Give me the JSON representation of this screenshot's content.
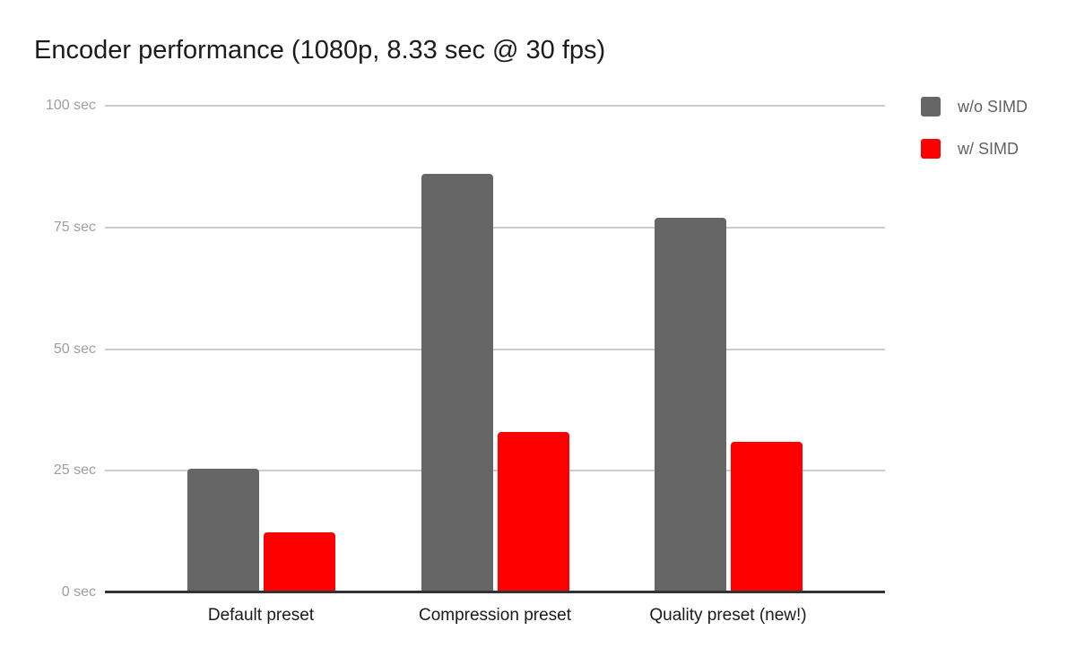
{
  "title": "Encoder performance (1080p, 8.33 sec @ 30 fps)",
  "colors": {
    "background": "#ffffff",
    "gridline": "#cccccc",
    "axis_baseline": "#333333",
    "tick_label": "#9e9e9e",
    "category_label": "#1a1a1a",
    "legend_label": "#616161",
    "series_without_simd": "#666666",
    "series_with_simd": "#ff0000"
  },
  "chart_data": {
    "type": "bar",
    "title": "Encoder performance (1080p, 8.33 sec @ 30 fps)",
    "categories": [
      "Default preset",
      "Compression preset",
      "Quality preset (new!)"
    ],
    "series": [
      {
        "name": "w/o SIMD",
        "color": "#666666",
        "values": [
          25.5,
          86,
          77
        ]
      },
      {
        "name": "w/ SIMD",
        "color": "#ff0000",
        "values": [
          12.3,
          33,
          31
        ]
      }
    ],
    "xlabel": "",
    "ylabel": "",
    "y_unit": "sec",
    "yticks": [
      0,
      25,
      50,
      75,
      100
    ],
    "ytick_labels": [
      "0 sec",
      "25 sec",
      "50 sec",
      "75 sec",
      "100 sec"
    ],
    "ylim": [
      0,
      100
    ],
    "grid": true,
    "legend_position": "top-right"
  }
}
